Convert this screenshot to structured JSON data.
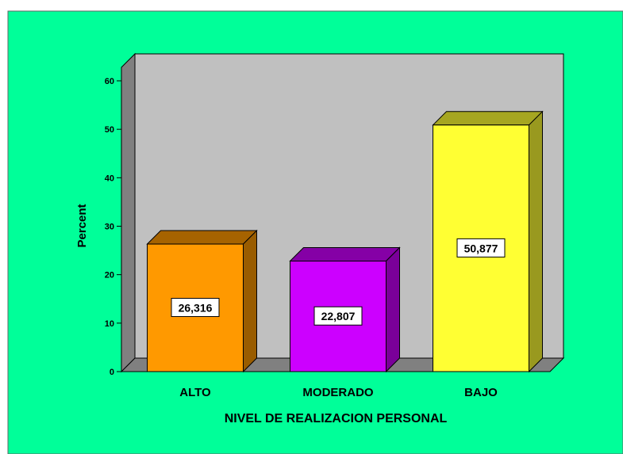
{
  "chart_data": {
    "type": "bar3d",
    "categories": [
      "ALTO",
      "MODERADO",
      "BAJO"
    ],
    "values": [
      26.316,
      22.807,
      50.877
    ],
    "value_labels": [
      "26,316",
      "22,807",
      "50,877"
    ],
    "colors": [
      "#ff9900",
      "#cc00ff",
      "#ffff33"
    ],
    "y_label": "Percent",
    "x_label": "NIVEL DE REALIZACION PERSONAL",
    "ylim": [
      0,
      60
    ],
    "yticks": [
      0,
      10,
      20,
      30,
      40,
      50,
      60
    ]
  }
}
